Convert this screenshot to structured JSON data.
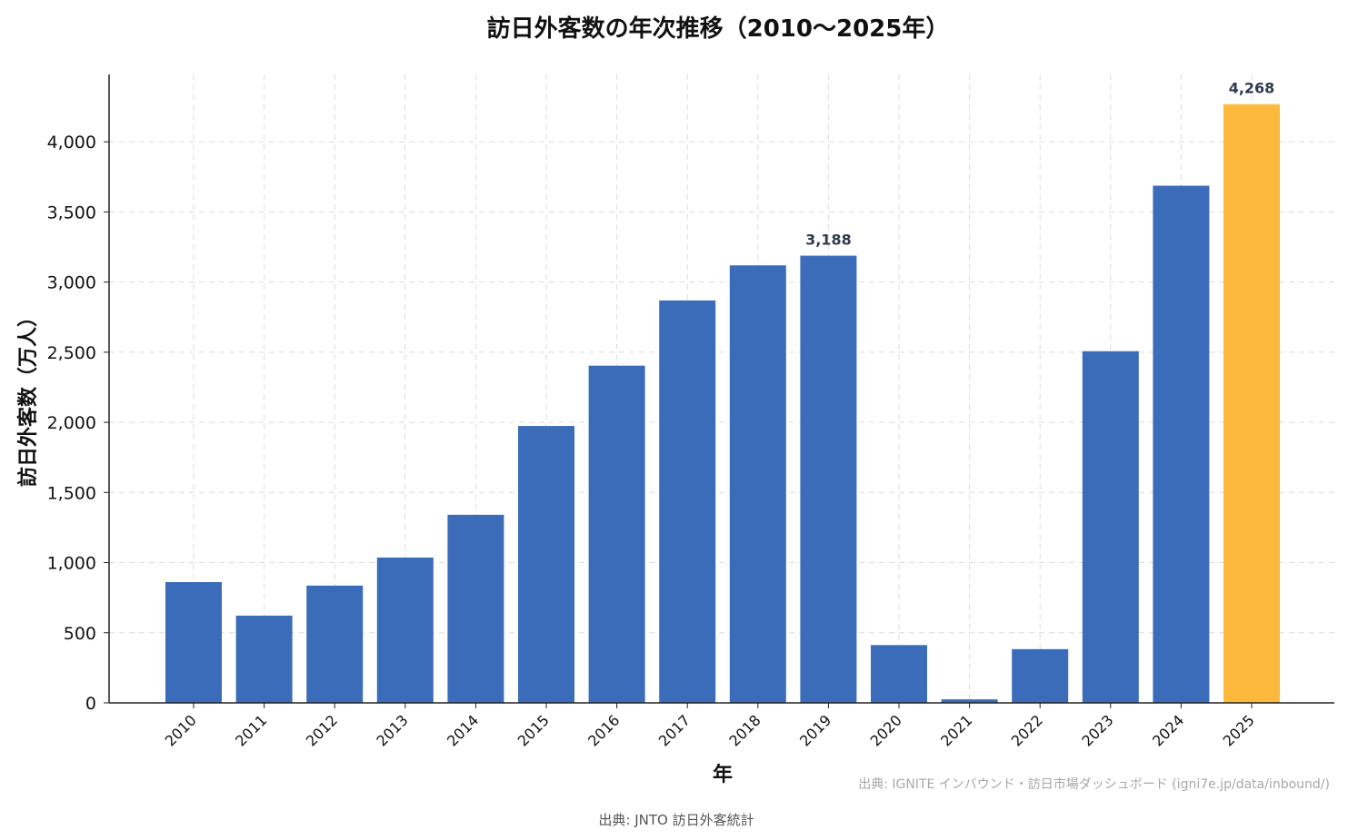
{
  "chart_data": {
    "type": "bar",
    "title": "訪日外客数の年次推移（2010〜2025年）",
    "xlabel": "年",
    "ylabel": "訪日外客数（万人）",
    "categories": [
      "2010",
      "2011",
      "2012",
      "2013",
      "2014",
      "2015",
      "2016",
      "2017",
      "2018",
      "2019",
      "2020",
      "2021",
      "2022",
      "2023",
      "2024",
      "2025"
    ],
    "values": [
      861,
      622,
      836,
      1036,
      1341,
      1974,
      2404,
      2869,
      3119,
      3188,
      412,
      25,
      383,
      2507,
      3687,
      4268
    ],
    "ylim": [
      0,
      4480
    ],
    "yticks": [
      0,
      500,
      1000,
      1500,
      2000,
      2500,
      3000,
      3500,
      4000
    ],
    "ytick_labels": [
      "0",
      "500",
      "1,000",
      "1,500",
      "2,000",
      "2,500",
      "3,000",
      "3,500",
      "4,000"
    ],
    "data_labels": [
      {
        "category": "2019",
        "text": "3,188"
      },
      {
        "category": "2025",
        "text": "4,268"
      }
    ],
    "grid": true,
    "colors": {
      "default": "#3a6cb9",
      "highlight": "#fdb93c",
      "highlight_category": "2025"
    }
  },
  "watermark": "出典: IGNITE インバウンド・訪日市場ダッシュボード (igni7e.jp/data/inbound/)",
  "source": "出典: JNTO 訪日外客統計"
}
